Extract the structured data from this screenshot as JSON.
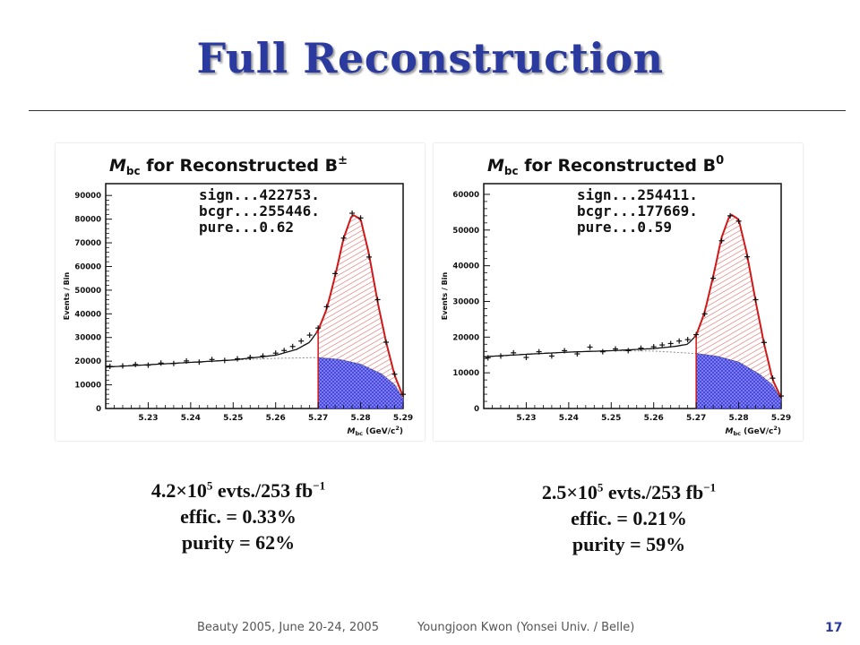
{
  "slide": {
    "title": "Full Reconstruction",
    "left_stats": {
      "base": "4.2×10",
      "exp": "5",
      "evts": " evts./253 fb",
      "fbexp": "−1",
      "effic": "effic. = 0.33%",
      "purity": "purity = 62%"
    },
    "right_stats": {
      "base": "2.5×10",
      "exp": "5",
      "evts": " evts./253 fb",
      "fbexp": "−1",
      "effic": "effic. = 0.21%",
      "purity": "purity = 59%"
    },
    "footer_conf": "Beauty 2005, June 20-24, 2005",
    "footer_author": "Youngjoon Kwon (Yonsei Univ. / Belle)",
    "page_number": "17"
  },
  "chart_data": [
    {
      "type": "scatter",
      "title": "M_bc for Reconstructed B±",
      "title_main": "M",
      "title_sub": "bc",
      "title_rest": " for Reconstructed B",
      "title_sup": "±",
      "ylabel": "Events / Bin",
      "xlabel_main": "M",
      "xlabel_sub": "bc",
      "xlabel_unit": " (GeV/c",
      "xlabel_unit_sup": "2",
      "xlabel_close": ")",
      "xlim": [
        5.22,
        5.29
      ],
      "ylim": [
        0,
        95000
      ],
      "xticks": [
        "5.23",
        "5.24",
        "5.25",
        "5.26",
        "5.27",
        "5.28",
        "5.29"
      ],
      "yticks": [
        "0",
        "10000",
        "20000",
        "30000",
        "40000",
        "50000",
        "60000",
        "70000",
        "80000",
        "90000"
      ],
      "annotations": [
        "sign...422753.",
        "bcgr...255446.",
        "pure...0.62"
      ],
      "signal_region": [
        5.27,
        5.29
      ],
      "background_curve": {
        "x": [
          5.22,
          5.23,
          5.24,
          5.25,
          5.26,
          5.27,
          5.275,
          5.28,
          5.285,
          5.288,
          5.29
        ],
        "y": [
          17500,
          18500,
          19500,
          20500,
          21200,
          21500,
          20700,
          18700,
          14500,
          10000,
          4000
        ]
      },
      "total_fit": {
        "x": [
          5.22,
          5.23,
          5.24,
          5.25,
          5.26,
          5.265,
          5.268,
          5.27,
          5.272,
          5.274,
          5.276,
          5.278,
          5.28,
          5.282,
          5.284,
          5.286,
          5.288,
          5.29
        ],
        "y": [
          17500,
          18500,
          19500,
          20500,
          22500,
          25000,
          28000,
          33000,
          42000,
          56000,
          72000,
          82000,
          80000,
          65000,
          45000,
          28000,
          14000,
          5000
        ]
      },
      "points": {
        "x": [
          5.221,
          5.224,
          5.227,
          5.23,
          5.233,
          5.236,
          5.239,
          5.242,
          5.245,
          5.248,
          5.251,
          5.254,
          5.257,
          5.26,
          5.262,
          5.264,
          5.266,
          5.268,
          5.27,
          5.272,
          5.274,
          5.276,
          5.278,
          5.28,
          5.282,
          5.284,
          5.286,
          5.288,
          5.29
        ],
        "y": [
          17800,
          18000,
          18600,
          18300,
          19200,
          19000,
          20100,
          19600,
          20700,
          20300,
          21000,
          21600,
          22200,
          23400,
          24500,
          26200,
          28500,
          31000,
          34000,
          43000,
          57000,
          72000,
          82500,
          80500,
          64000,
          46000,
          28000,
          14500,
          6000
        ]
      }
    },
    {
      "type": "scatter",
      "title": "M_bc for Reconstructed B0",
      "title_main": "M",
      "title_sub": "bc",
      "title_rest": " for Reconstructed B",
      "title_sup": "0",
      "ylabel": "Events / Bin",
      "xlabel_main": "M",
      "xlabel_sub": "bc",
      "xlabel_unit": " (GeV/c",
      "xlabel_unit_sup": "2",
      "xlabel_close": ")",
      "xlim": [
        5.22,
        5.29
      ],
      "ylim": [
        0,
        63000
      ],
      "xticks": [
        "5.23",
        "5.24",
        "5.25",
        "5.26",
        "5.27",
        "5.28",
        "5.29"
      ],
      "yticks": [
        "0",
        "10000",
        "20000",
        "30000",
        "40000",
        "50000",
        "60000"
      ],
      "annotations": [
        "sign...254411.",
        "bcgr...177669.",
        "pure...0.59"
      ],
      "signal_region": [
        5.27,
        5.29
      ],
      "background_curve": {
        "x": [
          5.22,
          5.23,
          5.24,
          5.25,
          5.26,
          5.27,
          5.275,
          5.28,
          5.285,
          5.288,
          5.29
        ],
        "y": [
          14500,
          15200,
          15800,
          16200,
          16100,
          15400,
          14600,
          13000,
          9500,
          6500,
          2500
        ]
      },
      "total_fit": {
        "x": [
          5.22,
          5.23,
          5.24,
          5.25,
          5.26,
          5.265,
          5.268,
          5.27,
          5.272,
          5.274,
          5.276,
          5.278,
          5.28,
          5.282,
          5.284,
          5.286,
          5.288,
          5.29
        ],
        "y": [
          14500,
          15200,
          15800,
          16200,
          16800,
          17400,
          18000,
          20500,
          27000,
          37000,
          48000,
          54500,
          53000,
          43000,
          30000,
          18000,
          8000,
          3000
        ]
      },
      "points": {
        "x": [
          5.221,
          5.224,
          5.227,
          5.23,
          5.233,
          5.236,
          5.239,
          5.242,
          5.245,
          5.248,
          5.251,
          5.254,
          5.257,
          5.26,
          5.262,
          5.264,
          5.266,
          5.268,
          5.27,
          5.272,
          5.274,
          5.276,
          5.278,
          5.28,
          5.282,
          5.284,
          5.286,
          5.288,
          5.29
        ],
        "y": [
          14200,
          14700,
          15600,
          14300,
          15900,
          14700,
          16200,
          15300,
          17200,
          15900,
          16700,
          16200,
          16900,
          17300,
          17800,
          18200,
          18900,
          19300,
          20700,
          26500,
          36500,
          47000,
          54000,
          52500,
          42500,
          30500,
          18500,
          8500,
          3500
        ]
      }
    }
  ]
}
